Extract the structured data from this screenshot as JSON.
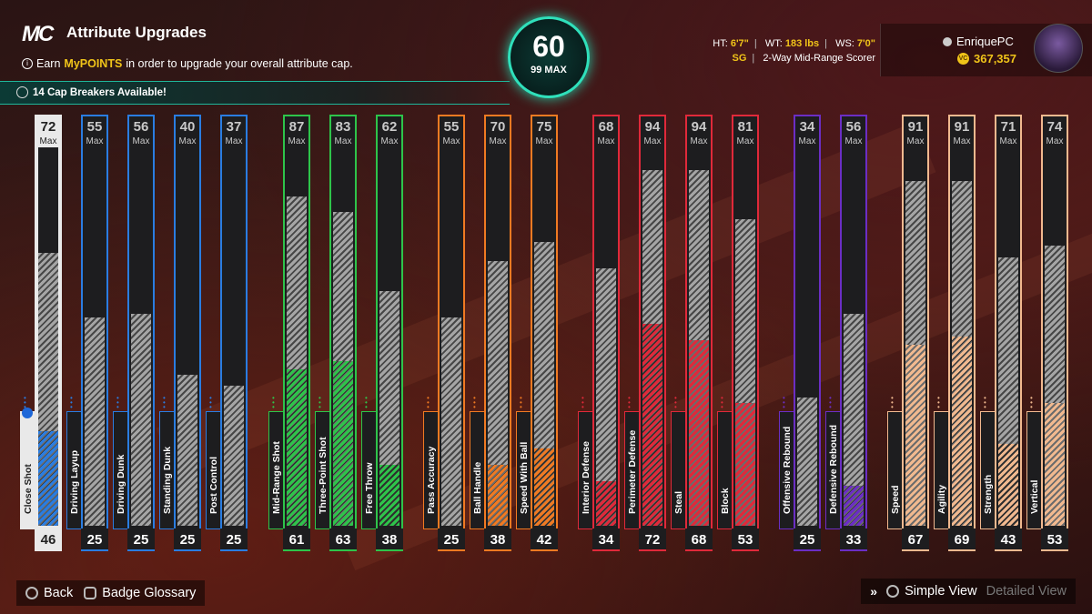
{
  "header": {
    "logo": "MC",
    "title": "Attribute Upgrades",
    "info_prefix": "Earn",
    "info_highlight": "MyPOINTS",
    "info_suffix": "in order to upgrade your overall attribute cap.",
    "cap_breakers": "14 Cap Breakers Available!"
  },
  "overall": {
    "value": "60",
    "max_label": "99 MAX"
  },
  "measurements": {
    "ht_label": "HT:",
    "ht": "6'7\"",
    "wt_label": "WT:",
    "wt": "183 lbs",
    "ws_label": "WS:",
    "ws": "7'0\"",
    "position": "SG",
    "archetype": "2-Way Mid-Range Scorer"
  },
  "user": {
    "name": "EnriquePC",
    "vc": "367,357"
  },
  "colors": {
    "inside": "#2a7de1",
    "mid": "#2ec44a",
    "playmaking": "#f07a22",
    "defense": "#e0293a",
    "rebound": "#6b2ec4",
    "athletic": "#f1b98f",
    "accent": "#2fe0bb"
  },
  "max_label": "Max",
  "attributes": [
    {
      "name": "Close Shot",
      "max": 72,
      "current": 46,
      "group": "inside",
      "selected": true
    },
    {
      "name": "Driving Layup",
      "max": 55,
      "current": 25,
      "group": "inside"
    },
    {
      "name": "Driving Dunk",
      "max": 56,
      "current": 25,
      "group": "inside"
    },
    {
      "name": "Standing Dunk",
      "max": 40,
      "current": 25,
      "group": "inside"
    },
    {
      "name": "Post Control",
      "max": 37,
      "current": 25,
      "group": "inside"
    },
    {
      "name": "Mid-Range Shot",
      "max": 87,
      "current": 61,
      "group": "mid"
    },
    {
      "name": "Three-Point Shot",
      "max": 83,
      "current": 63,
      "group": "mid"
    },
    {
      "name": "Free Throw",
      "max": 62,
      "current": 38,
      "group": "mid"
    },
    {
      "name": "Pass Accuracy",
      "max": 55,
      "current": 25,
      "group": "playmaking"
    },
    {
      "name": "Ball Handle",
      "max": 70,
      "current": 38,
      "group": "playmaking"
    },
    {
      "name": "Speed With Ball",
      "max": 75,
      "current": 42,
      "group": "playmaking"
    },
    {
      "name": "Interior Defense",
      "max": 68,
      "current": 34,
      "group": "defense"
    },
    {
      "name": "Perimeter Defense",
      "max": 94,
      "current": 72,
      "group": "defense"
    },
    {
      "name": "Steal",
      "max": 94,
      "current": 68,
      "group": "defense"
    },
    {
      "name": "Block",
      "max": 81,
      "current": 53,
      "group": "defense"
    },
    {
      "name": "Offensive Rebound",
      "max": 34,
      "current": 25,
      "group": "rebound"
    },
    {
      "name": "Defensive Rebound",
      "max": 56,
      "current": 33,
      "group": "rebound"
    },
    {
      "name": "Speed",
      "max": 91,
      "current": 67,
      "group": "athletic"
    },
    {
      "name": "Agility",
      "max": 91,
      "current": 69,
      "group": "athletic"
    },
    {
      "name": "Strength",
      "max": 71,
      "current": 43,
      "group": "athletic"
    },
    {
      "name": "Vertical",
      "max": 74,
      "current": 53,
      "group": "athletic"
    }
  ],
  "footer": {
    "back": "Back",
    "glossary": "Badge Glossary",
    "simple_view": "Simple View",
    "detailed_view": "Detailed View"
  }
}
